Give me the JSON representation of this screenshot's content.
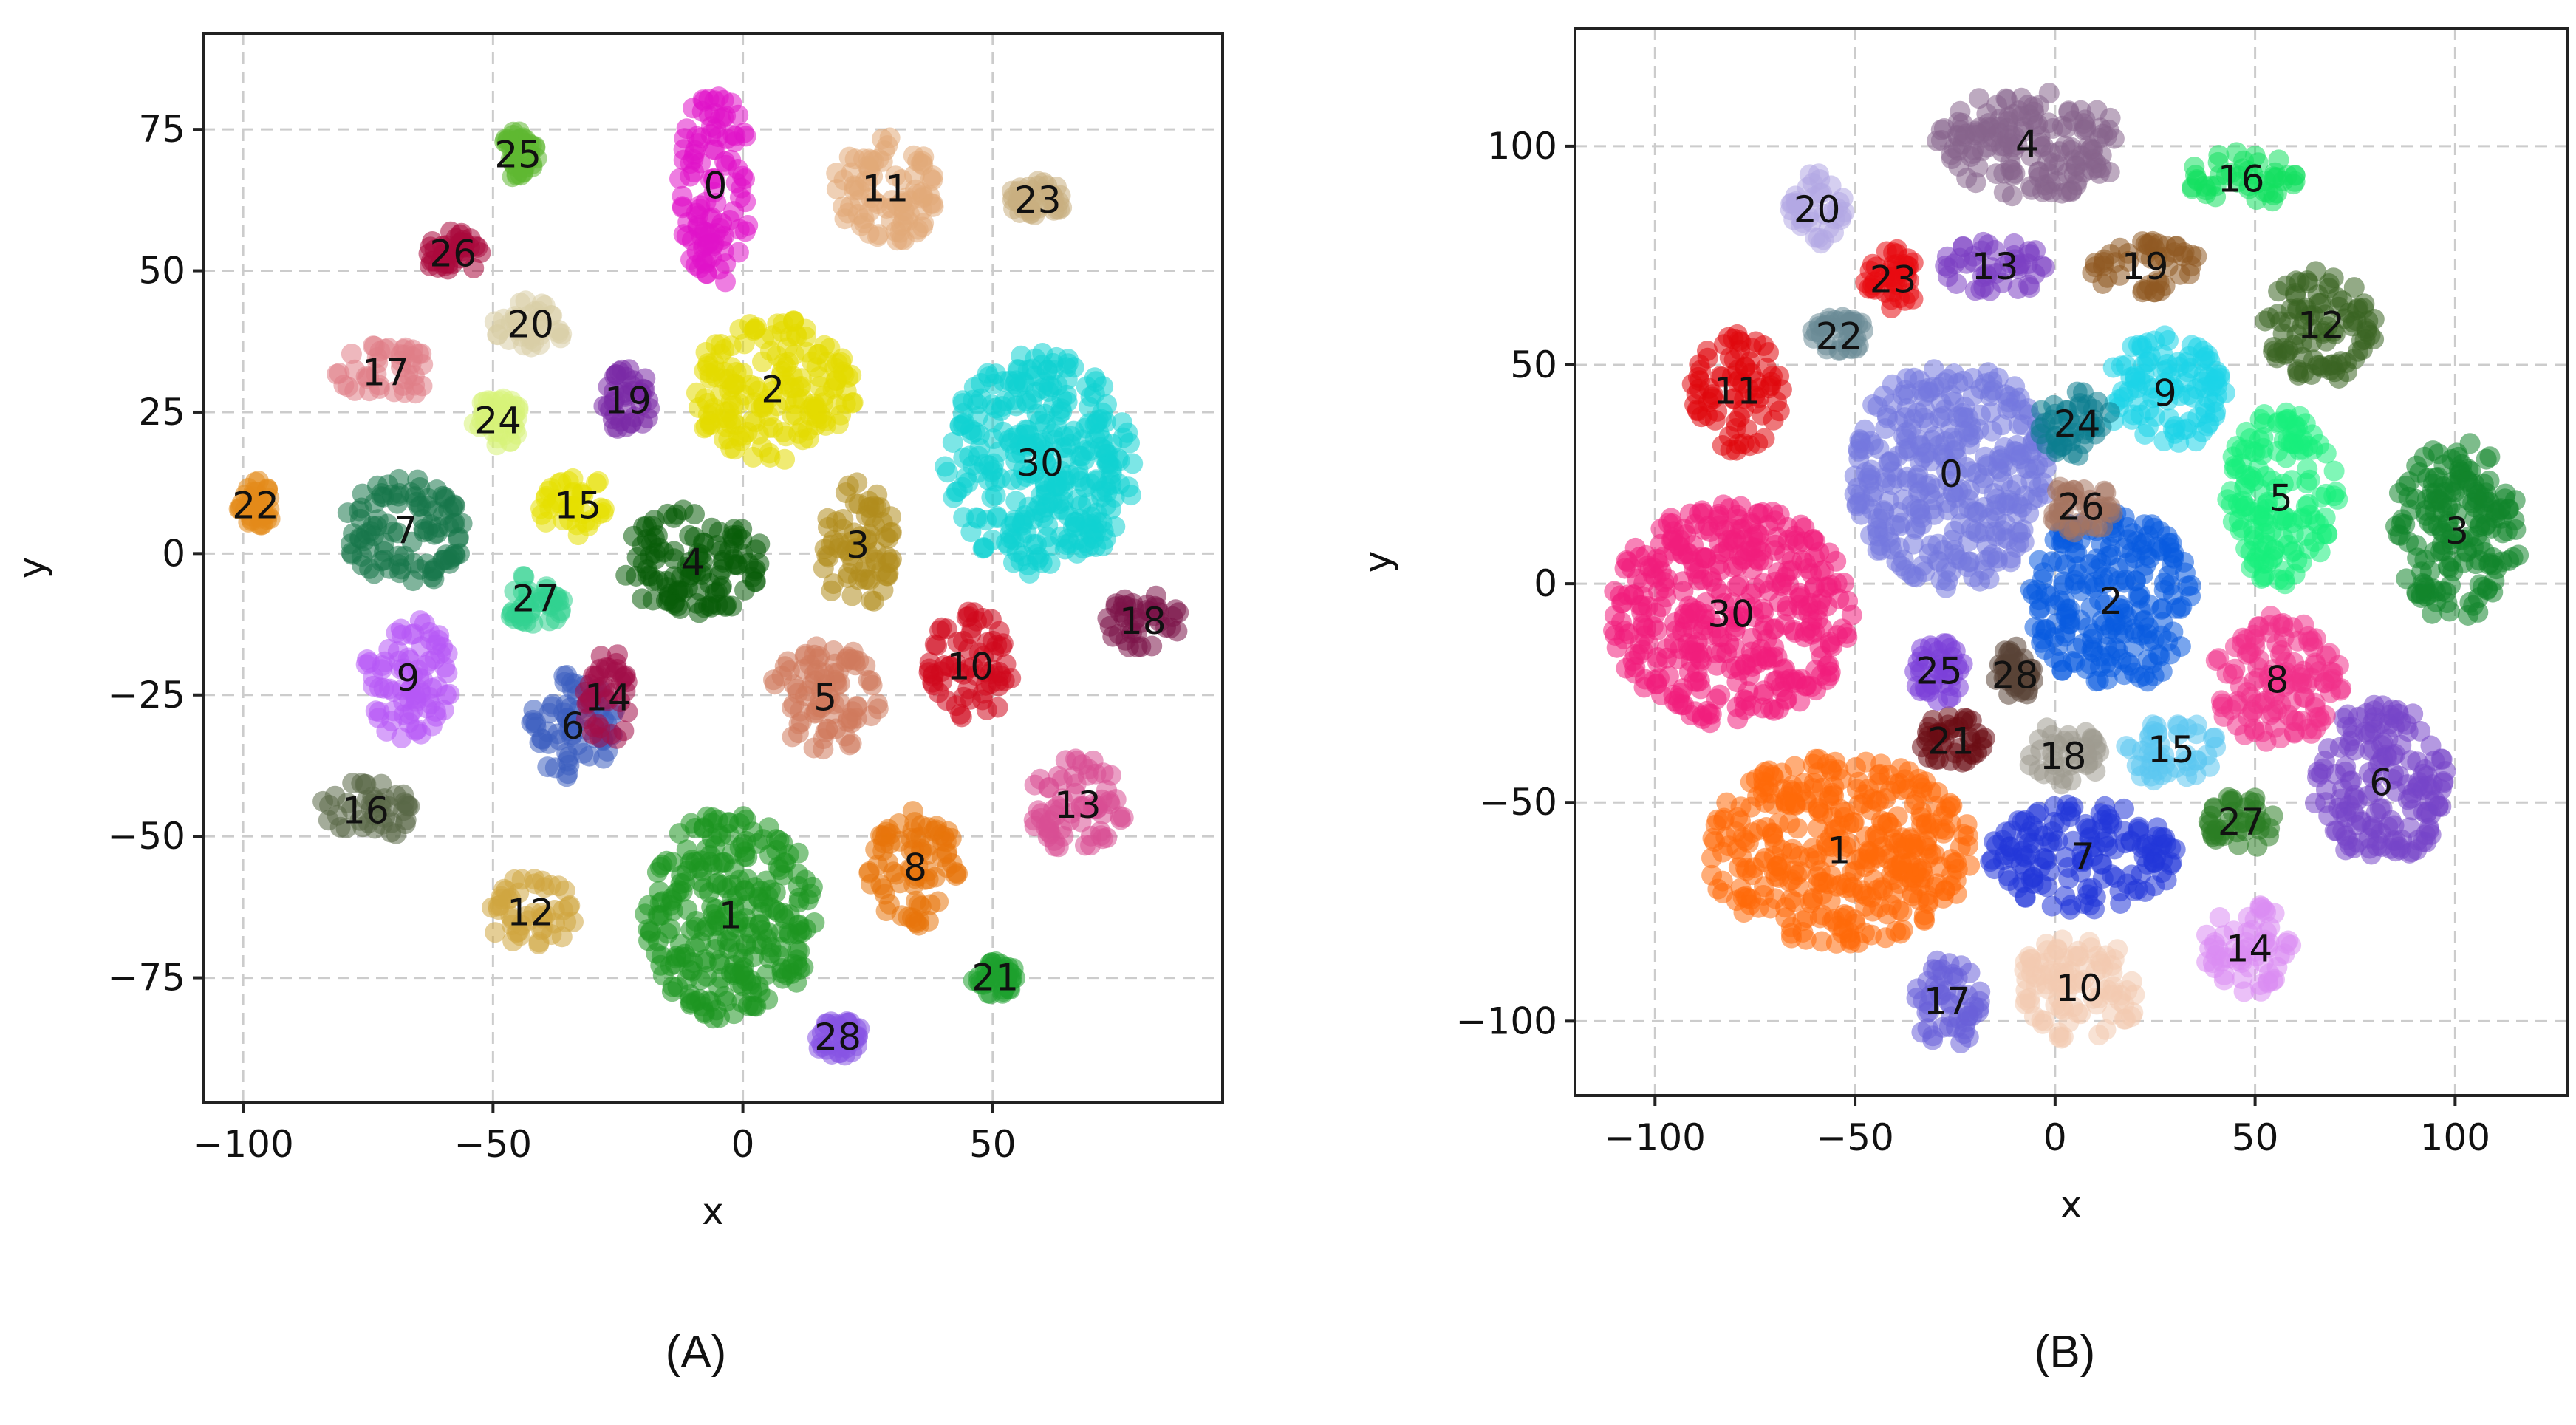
{
  "panels": [
    {
      "caption": "(A)",
      "chart_data": {
        "type": "scatter",
        "xlabel": "x",
        "ylabel": "y",
        "xlim": [
          -108,
          96
        ],
        "ylim": [
          -97,
          92
        ],
        "xticks": [
          -100,
          -50,
          0,
          50
        ],
        "xtick_labels": [
          "−100",
          "−50",
          "0",
          "50"
        ],
        "yticks": [
          -75,
          -50,
          -25,
          0,
          25,
          50,
          75
        ],
        "ytick_labels": [
          "−75",
          "−50",
          "−25",
          "0",
          "25",
          "50",
          "75"
        ],
        "grid": true,
        "clusters": [
          {
            "label": "0",
            "x": [
              -13,
              2
            ],
            "y": [
              47,
              83
            ],
            "color": "#e012c8"
          },
          {
            "label": "1",
            "x": [
              -20,
              15
            ],
            "y": [
              -83,
              -45
            ],
            "color": "#1e9620"
          },
          {
            "label": "2",
            "x": [
              -11,
              23
            ],
            "y": [
              16,
              42
            ],
            "color": "#e3db00"
          },
          {
            "label": "3",
            "x": [
              15,
              31
            ],
            "y": [
              -10,
              13
            ],
            "color": "#b18d1e"
          },
          {
            "label": "4",
            "x": [
              -25,
              5
            ],
            "y": [
              -11,
              8
            ],
            "color": "#0a5c0a"
          },
          {
            "label": "5",
            "x": [
              5,
              28
            ],
            "y": [
              -35,
              -16
            ],
            "color": "#cf7a5c"
          },
          {
            "label": "6",
            "x": [
              -43,
              -25
            ],
            "y": [
              -40,
              -21
            ],
            "color": "#3d5fbf"
          },
          {
            "label": "7",
            "x": [
              -80,
              -55
            ],
            "y": [
              -6,
              14
            ],
            "color": "#17764b"
          },
          {
            "label": "8",
            "x": [
              25,
              44
            ],
            "y": [
              -66,
              -45
            ],
            "color": "#e8740b"
          },
          {
            "label": "9",
            "x": [
              -76,
              -58
            ],
            "y": [
              -33,
              -11
            ],
            "color": "#b657f5"
          },
          {
            "label": "10",
            "x": [
              37,
              54
            ],
            "y": [
              -30,
              -10
            ],
            "color": "#cf0a1d"
          },
          {
            "label": "11",
            "x": [
              18,
              39
            ],
            "y": [
              54,
              75
            ],
            "color": "#e1aa78"
          },
          {
            "label": "12",
            "x": [
              -52,
              -33
            ],
            "y": [
              -70,
              -57
            ],
            "color": "#d0a640"
          },
          {
            "label": "13",
            "x": [
              57,
              77
            ],
            "y": [
              -53,
              -36
            ],
            "color": "#d94f93"
          },
          {
            "label": "14",
            "x": [
              -32,
              -22
            ],
            "y": [
              -34,
              -17
            ],
            "color": "#a30f48"
          },
          {
            "label": "15",
            "x": [
              -41,
              -25
            ],
            "y": [
              3,
              14
            ],
            "color": "#e6e000"
          },
          {
            "label": "16",
            "x": [
              -85,
              -66
            ],
            "y": [
              -51,
              -40
            ],
            "color": "#5a6747"
          },
          {
            "label": "17",
            "x": [
              -82,
              -61
            ],
            "y": [
              27,
              37
            ],
            "color": "#e07d87"
          },
          {
            "label": "18",
            "x": [
              72,
              88
            ],
            "y": [
              -17,
              -7
            ],
            "color": "#7b1448"
          },
          {
            "label": "19",
            "x": [
              -28,
              -18
            ],
            "y": [
              21,
              33
            ],
            "color": "#7a2aa5"
          },
          {
            "label": "20",
            "x": [
              -50,
              -35
            ],
            "y": [
              36,
              45
            ],
            "color": "#d9cda5"
          },
          {
            "label": "21",
            "x": [
              46,
              55
            ],
            "y": [
              -78,
              -72
            ],
            "color": "#1da12e"
          },
          {
            "label": "22",
            "x": [
              -101,
              -94
            ],
            "y": [
              4,
              13
            ],
            "color": "#e38a19"
          },
          {
            "label": "23",
            "x": [
              53,
              65
            ],
            "y": [
              59,
              66
            ],
            "color": "#c8af80"
          },
          {
            "label": "24",
            "x": [
              -54,
              -44
            ],
            "y": [
              19,
              28
            ],
            "color": "#d7f279"
          },
          {
            "label": "25",
            "x": [
              -49,
              -41
            ],
            "y": [
              66,
              75
            ],
            "color": "#5fb832"
          },
          {
            "label": "26",
            "x": [
              -64,
              -52
            ],
            "y": [
              49,
              57
            ],
            "color": "#a9093d"
          },
          {
            "label": "27",
            "x": [
              -48,
              -35
            ],
            "y": [
              -13,
              -3
            ],
            "color": "#31d18f"
          },
          {
            "label": "28",
            "x": [
              14,
              24
            ],
            "y": [
              -89,
              -82
            ],
            "color": "#8754e3"
          },
          {
            "label": "30",
            "x": [
              40,
              79
            ],
            "y": [
              -4,
              36
            ],
            "color": "#10d2d2"
          }
        ]
      }
    },
    {
      "caption": "(B)",
      "chart_data": {
        "type": "scatter",
        "xlabel": "x",
        "ylabel": "y",
        "xlim": [
          -120,
          128
        ],
        "ylim": [
          -117,
          127
        ],
        "xticks": [
          -100,
          -50,
          0,
          50,
          100
        ],
        "xtick_labels": [
          "−100",
          "−50",
          "0",
          "50",
          "100"
        ],
        "yticks": [
          -100,
          -50,
          0,
          50,
          100
        ],
        "ytick_labels": [
          "−100",
          "−50",
          "0",
          "50",
          "100"
        ],
        "grid": true,
        "clusters": [
          {
            "label": "0",
            "x": [
              -51,
              -1
            ],
            "y": [
              -2,
              52
            ],
            "color": "#7478de"
          },
          {
            "label": "1",
            "x": [
              -88,
              -20
            ],
            "y": [
              -83,
              -39
            ],
            "color": "#ff6a0a"
          },
          {
            "label": "2",
            "x": [
              -7,
              35
            ],
            "y": [
              -25,
              17
            ],
            "color": "#0a5be0"
          },
          {
            "label": "3",
            "x": [
              84,
              117
            ],
            "y": [
              -9,
              33
            ],
            "color": "#12852b"
          },
          {
            "label": "4",
            "x": [
              -32,
              18
            ],
            "y": [
              88,
              113
            ],
            "color": "#86648d"
          },
          {
            "label": "5",
            "x": [
              42,
              71
            ],
            "y": [
              -1,
              40
            ],
            "color": "#17ee7b"
          },
          {
            "label": "6",
            "x": [
              64,
              99
            ],
            "y": [
              -64,
              -27
            ],
            "color": "#7746c8"
          },
          {
            "label": "7",
            "x": [
              -17,
              31
            ],
            "y": [
              -75,
              -50
            ],
            "color": "#2337d8"
          },
          {
            "label": "8",
            "x": [
              39,
              72
            ],
            "y": [
              -37,
              -7
            ],
            "color": "#f0318a"
          },
          {
            "label": "9",
            "x": [
              12,
              43
            ],
            "y": [
              30,
              57
            ],
            "color": "#1cd3e8"
          },
          {
            "label": "10",
            "x": [
              -10,
              22
            ],
            "y": [
              -105,
              -80
            ],
            "color": "#f2cbb0"
          },
          {
            "label": "11",
            "x": [
              -91,
              -68
            ],
            "y": [
              30,
              58
            ],
            "color": "#e0070c"
          },
          {
            "label": "12",
            "x": [
              52,
              81
            ],
            "y": [
              46,
              72
            ],
            "color": "#3b6523"
          },
          {
            "label": "13",
            "x": [
              -29,
              -1
            ],
            "y": [
              66,
              79
            ],
            "color": "#7c40c3"
          },
          {
            "label": "14",
            "x": [
              37,
              60
            ],
            "y": [
              -94,
              -73
            ],
            "color": "#da8cf2"
          },
          {
            "label": "15",
            "x": [
              17,
              41
            ],
            "y": [
              -46,
              -30
            ],
            "color": "#5bc6f1"
          },
          {
            "label": "16",
            "x": [
              32,
              61
            ],
            "y": [
              86,
              99
            ],
            "color": "#14e061"
          },
          {
            "label": "17",
            "x": [
              -36,
              -18
            ],
            "y": [
              -107,
              -84
            ],
            "color": "#6a60d8"
          },
          {
            "label": "18",
            "x": [
              -8,
              12
            ],
            "y": [
              -47,
              -32
            ],
            "color": "#9e9b90"
          },
          {
            "label": "19",
            "x": [
              8,
              37
            ],
            "y": [
              66,
              79
            ],
            "color": "#8f5a22"
          },
          {
            "label": "20",
            "x": [
              -67,
              -52
            ],
            "y": [
              77,
              94
            ],
            "color": "#b3a7e3"
          },
          {
            "label": "21",
            "x": [
              -35,
              -17
            ],
            "y": [
              -42,
              -30
            ],
            "color": "#6b0c14"
          },
          {
            "label": "22",
            "x": [
              -61,
              -47
            ],
            "y": [
              51,
              62
            ],
            "color": "#6a8b95"
          },
          {
            "label": "23",
            "x": [
              -48,
              -33
            ],
            "y": [
              62,
              77
            ],
            "color": "#e80b11"
          },
          {
            "label": "24",
            "x": [
              -6,
              17
            ],
            "y": [
              29,
              44
            ],
            "color": "#0c7e8f"
          },
          {
            "label": "25",
            "x": [
              -36,
              -22
            ],
            "y": [
              -27,
              -13
            ],
            "color": "#7b3fd9"
          },
          {
            "label": "26",
            "x": [
              -2,
              15
            ],
            "y": [
              11,
              24
            ],
            "color": "#a67561"
          },
          {
            "label": "27",
            "x": [
              38,
              55
            ],
            "y": [
              -61,
              -48
            ],
            "color": "#2c7d25"
          },
          {
            "label": "28",
            "x": [
              -15,
              -5
            ],
            "y": [
              -28,
              -14
            ],
            "color": "#5a4436"
          },
          {
            "label": "30",
            "x": [
              -112,
              -50
            ],
            "y": [
              -33,
              19
            ],
            "color": "#f01d7c"
          }
        ]
      }
    }
  ]
}
